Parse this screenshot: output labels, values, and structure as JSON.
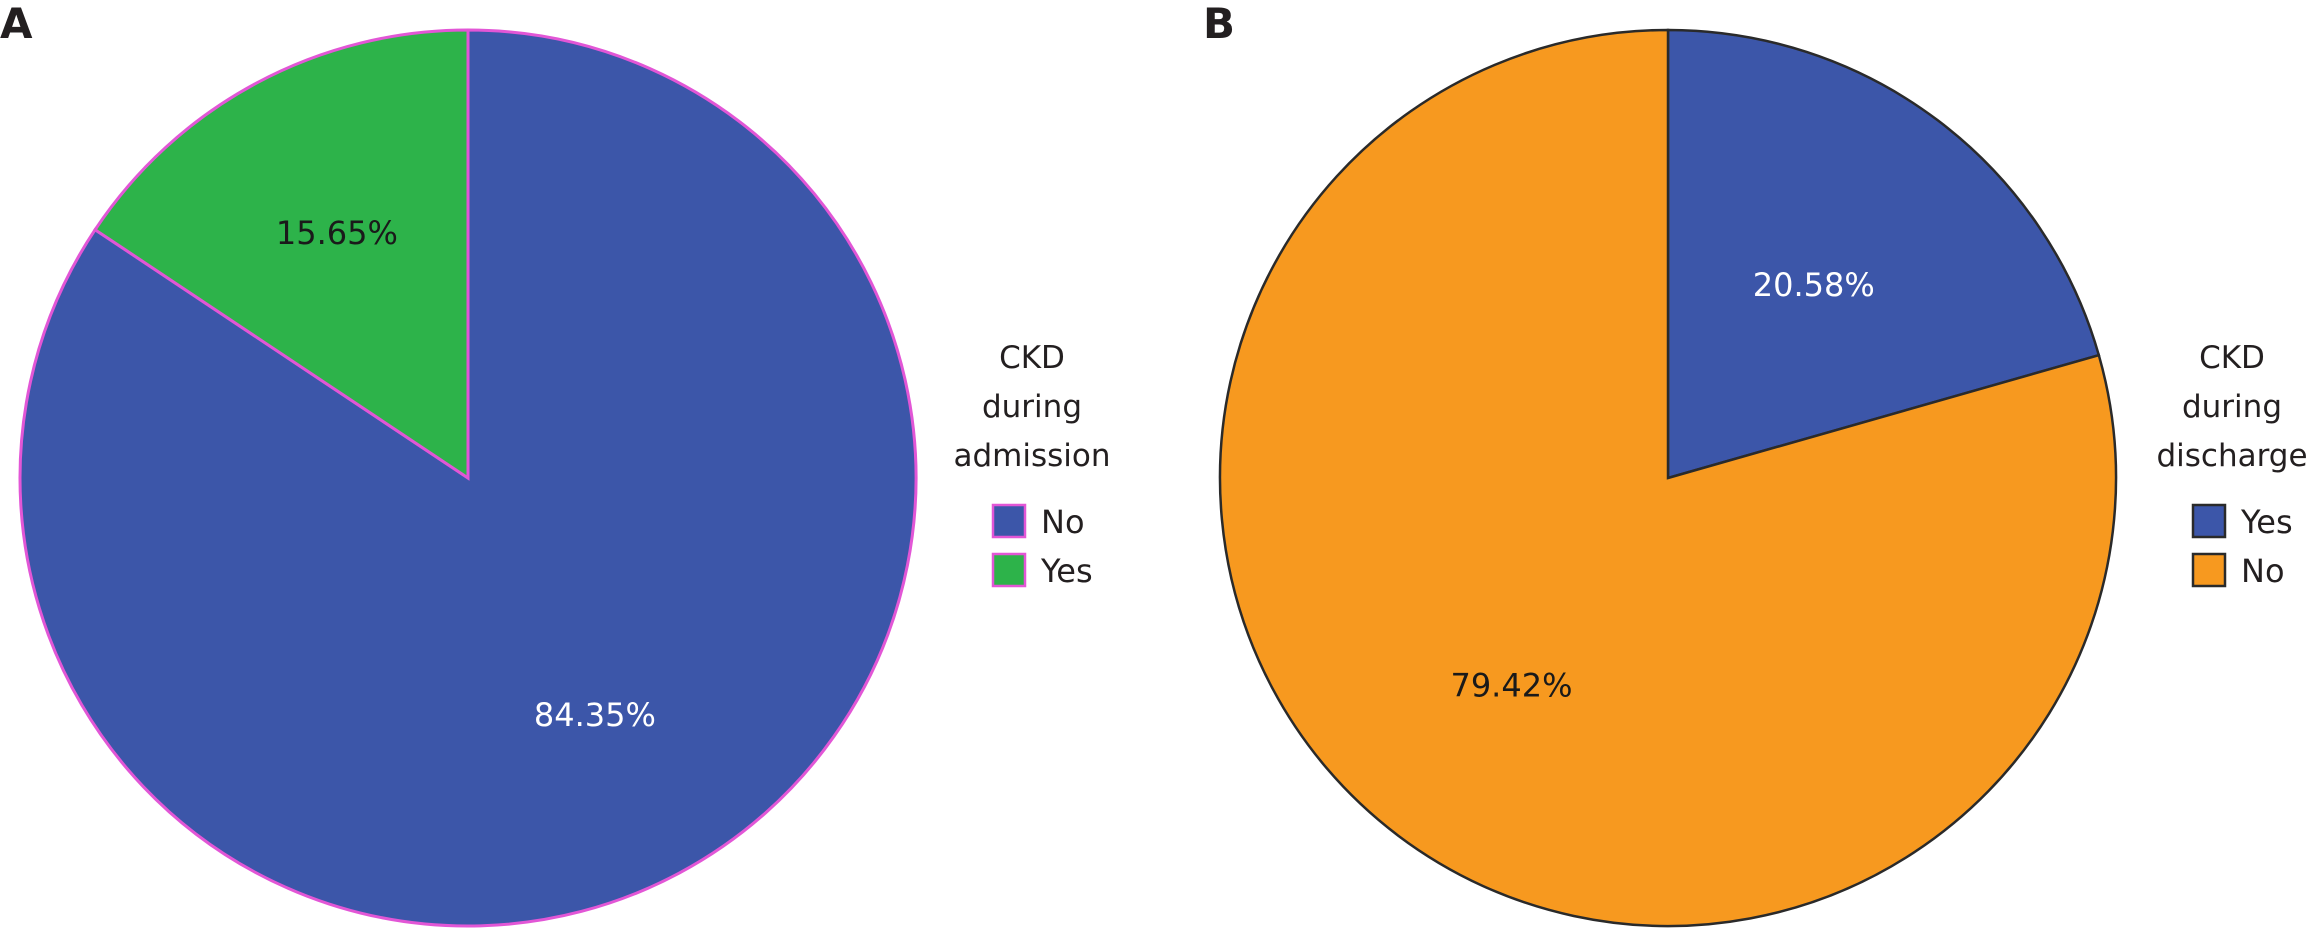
{
  "chart_data": [
    {
      "type": "pie",
      "panel": "A",
      "legend_title": [
        "CKD",
        "during",
        "admission"
      ],
      "legend_placement": "right",
      "outline_color": "#e256d6",
      "slices": [
        {
          "label": "No",
          "value": 84.35,
          "value_label": "84.35%",
          "color": "#3c56a9",
          "text_color": "#ffffff"
        },
        {
          "label": "Yes",
          "value": 15.65,
          "value_label": "15.65%",
          "color": "#2db34a",
          "text_color": "#1a1a1a"
        }
      ]
    },
    {
      "type": "pie",
      "panel": "B",
      "legend_title": [
        "CKD",
        "during",
        "discharge"
      ],
      "legend_placement": "right",
      "outline_color": "#2a2a2a",
      "slices": [
        {
          "label": "Yes",
          "value": 20.58,
          "value_label": "20.58%",
          "color": "#3c56a9",
          "text_color": "#ffffff"
        },
        {
          "label": "No",
          "value": 79.42,
          "value_label": "79.42%",
          "color": "#f7991f",
          "text_color": "#1a1a1a"
        }
      ]
    }
  ]
}
